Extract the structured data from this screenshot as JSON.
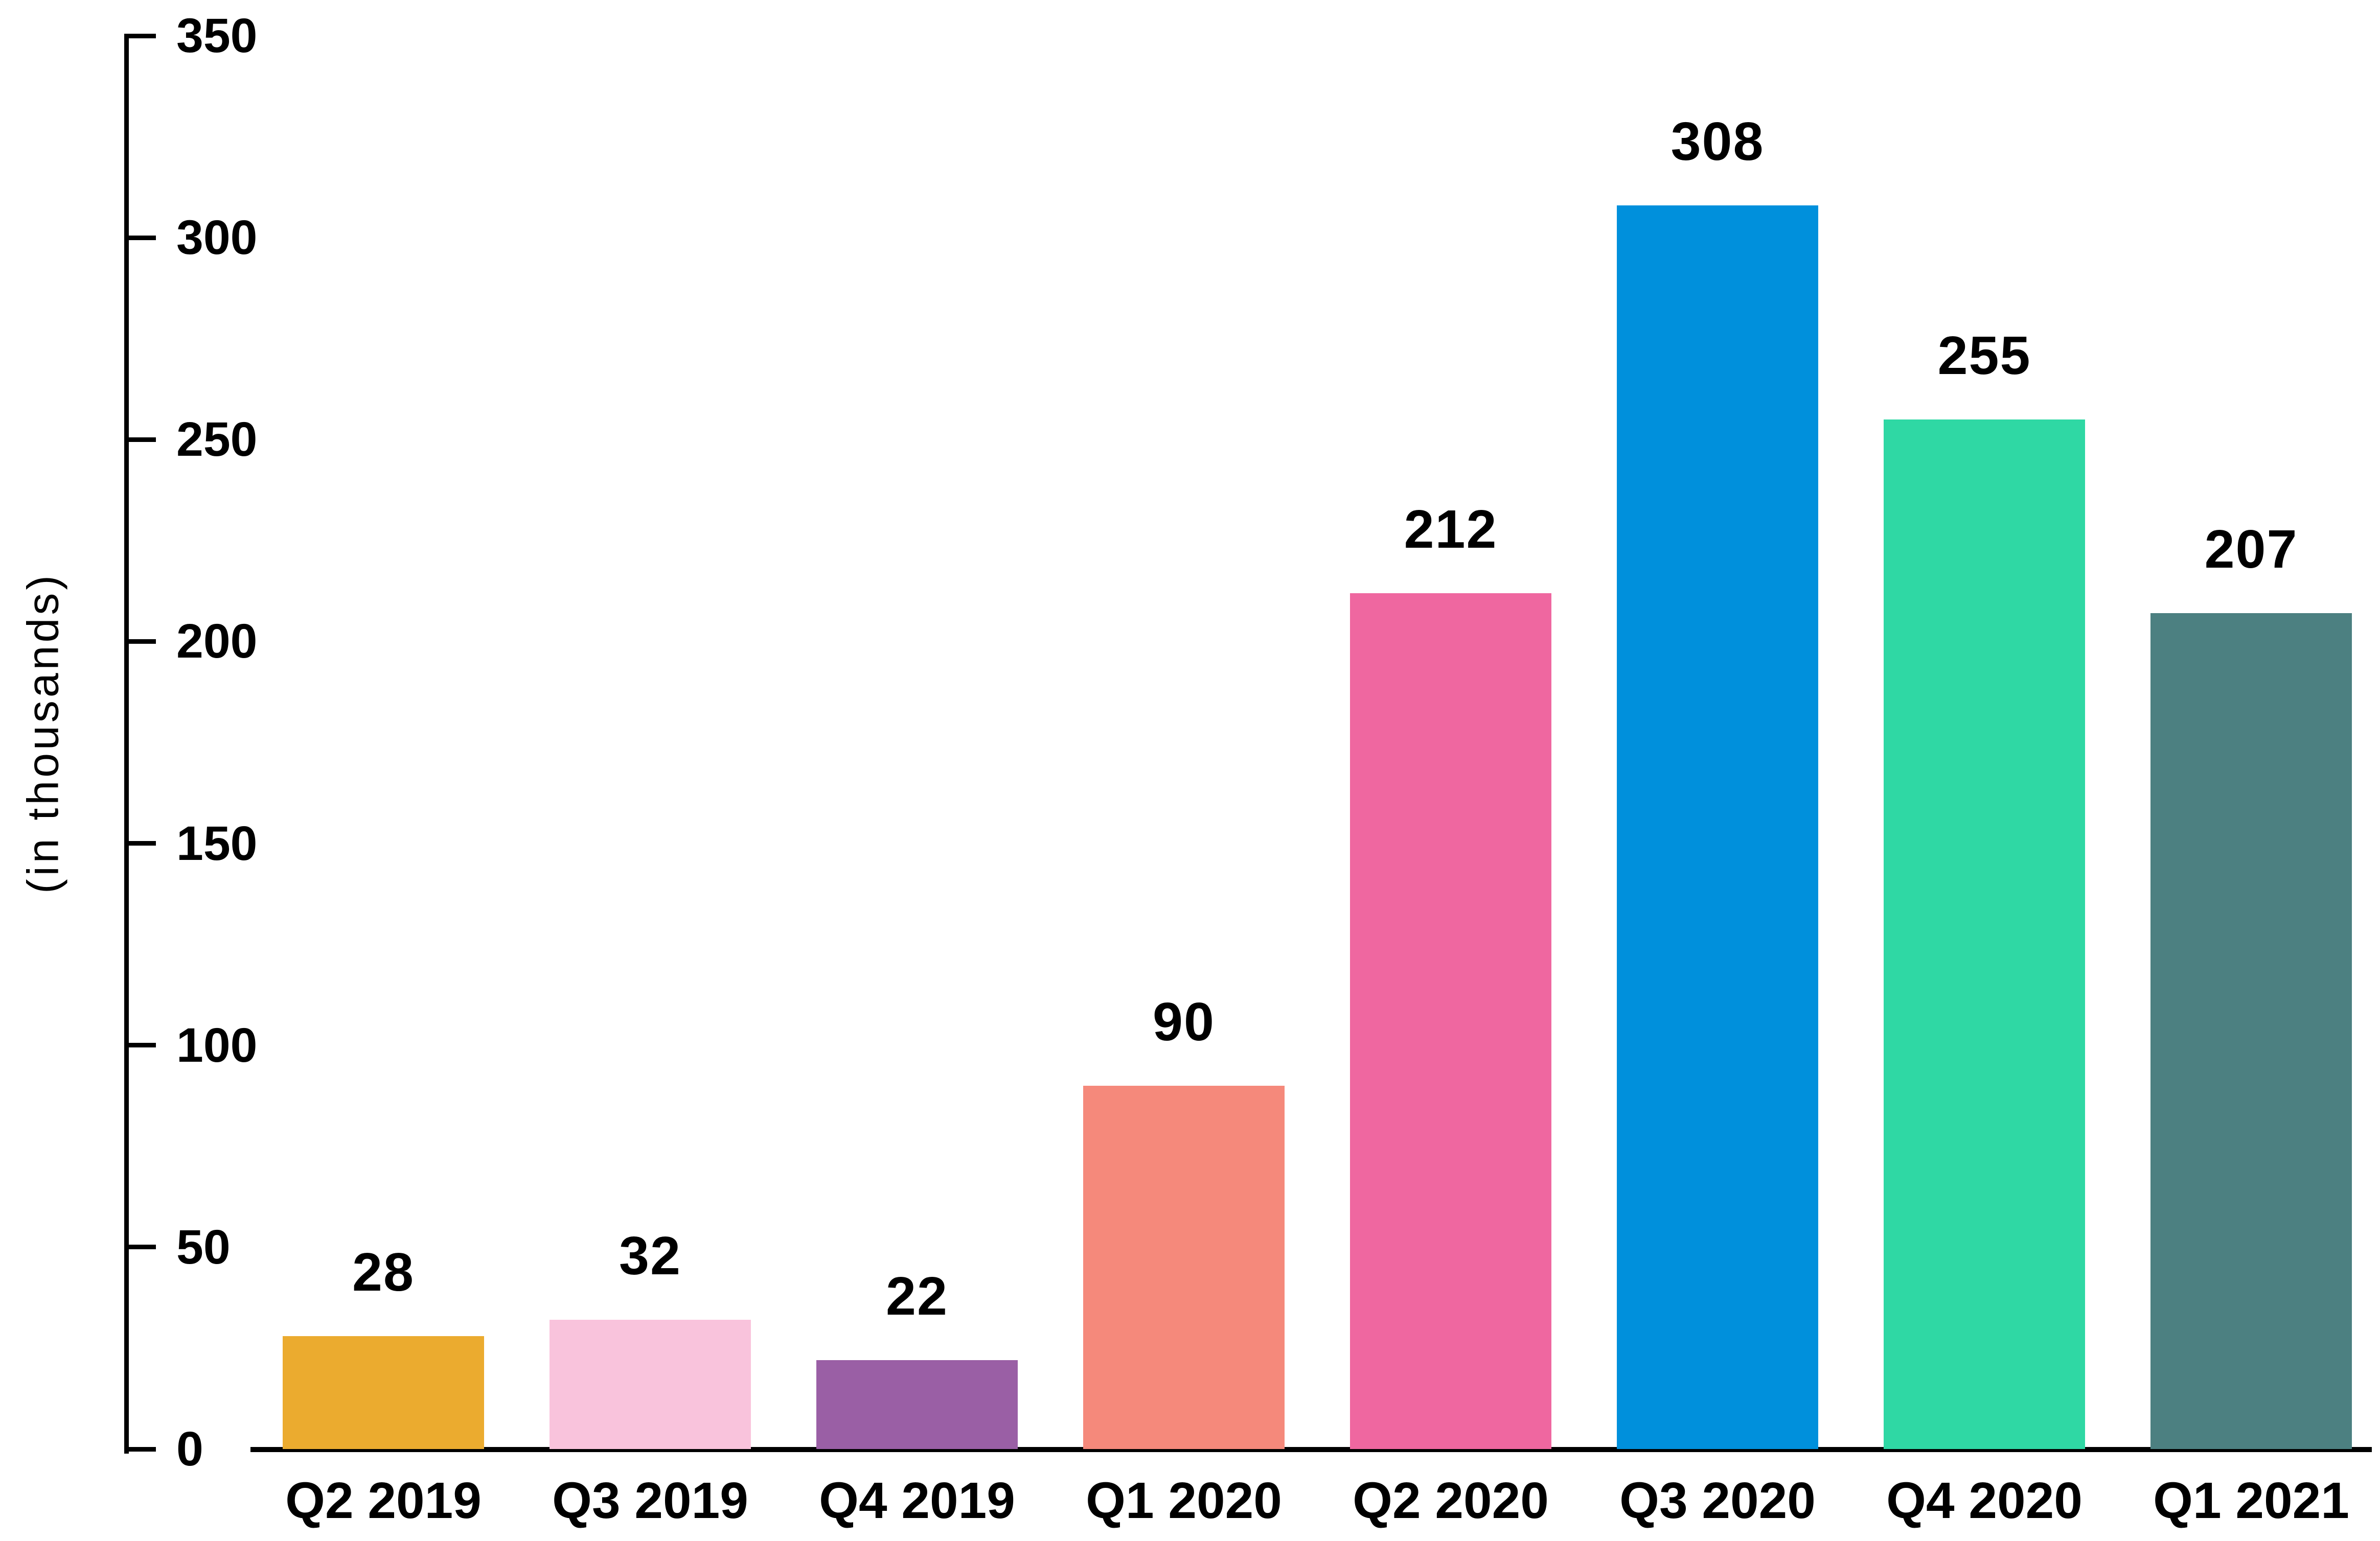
{
  "chart_data": {
    "type": "bar",
    "title": "",
    "xlabel": "",
    "ylabel": "(in thousands)",
    "categories": [
      "Q2 2019",
      "Q3 2019",
      "Q4 2019",
      "Q1 2020",
      "Q2 2020",
      "Q3 2020",
      "Q4 2020",
      "Q1 2021"
    ],
    "values": [
      28,
      32,
      22,
      90,
      212,
      308,
      255,
      207
    ],
    "value_labels": [
      "28",
      "32",
      "22",
      "90",
      "212",
      "308",
      "255",
      "207"
    ],
    "bar_colors": [
      "#EBAB2F",
      "#F9C3DC",
      "#9A5FA5",
      "#F5897B",
      "#EF67A0",
      "#0090DC",
      "#2FD8A4",
      "#4C8081"
    ],
    "ylim": [
      0,
      350
    ],
    "yticks": [
      0,
      50,
      100,
      150,
      200,
      250,
      300,
      350
    ],
    "grid": false,
    "legend_position": "none",
    "axis_color": "#000000",
    "text_color": "#000000",
    "background_color": "#FFFFFF"
  }
}
